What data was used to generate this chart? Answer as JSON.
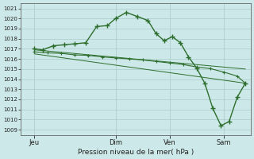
{
  "bg_color": "#cce8e8",
  "grid_color": "#aacccc",
  "line_color": "#2d6e2d",
  "xlabel": "Pression niveau de la mer( hPa )",
  "ylim": [
    1008.5,
    1021.5
  ],
  "yticks": [
    1009,
    1010,
    1011,
    1012,
    1013,
    1014,
    1015,
    1016,
    1017,
    1018,
    1019,
    1020,
    1021
  ],
  "xtick_labels": [
    "Jeu",
    "Dim",
    "Ven",
    "Sam"
  ],
  "xtick_positions": [
    0.5,
    3.5,
    5.5,
    7.5
  ],
  "xlim": [
    0,
    8.5
  ],
  "line1_x": [
    0.5,
    0.8,
    1.2,
    1.6,
    2.0,
    2.4,
    2.8,
    3.2,
    3.5,
    3.9,
    4.3,
    4.7,
    5.0,
    5.3,
    5.6,
    5.9,
    6.2,
    6.5,
    6.8,
    7.1,
    7.4,
    7.7,
    8.0,
    8.3
  ],
  "line1_y": [
    1017.0,
    1016.9,
    1017.3,
    1017.4,
    1017.5,
    1017.6,
    1019.2,
    1019.3,
    1020.0,
    1020.6,
    1020.2,
    1019.8,
    1018.5,
    1017.8,
    1018.2,
    1017.6,
    1016.2,
    1015.1,
    1013.6,
    1011.1,
    1009.4,
    1009.8,
    1012.2,
    1013.6
  ],
  "line2_x": [
    0.5,
    1.0,
    1.5,
    2.0,
    2.5,
    3.0,
    3.5,
    4.0,
    4.5,
    5.0,
    5.5,
    6.0,
    6.5,
    7.0,
    7.5,
    8.0,
    8.3
  ],
  "line2_y": [
    1016.7,
    1016.6,
    1016.55,
    1016.4,
    1016.35,
    1016.2,
    1016.1,
    1016.0,
    1015.9,
    1015.75,
    1015.6,
    1015.45,
    1015.2,
    1015.05,
    1014.7,
    1014.3,
    1013.6
  ],
  "line3_x": [
    0.5,
    8.3
  ],
  "line3_y": [
    1016.5,
    1013.6
  ],
  "line4_x": [
    0.5,
    8.3
  ],
  "line4_y": [
    1016.9,
    1015.0
  ]
}
